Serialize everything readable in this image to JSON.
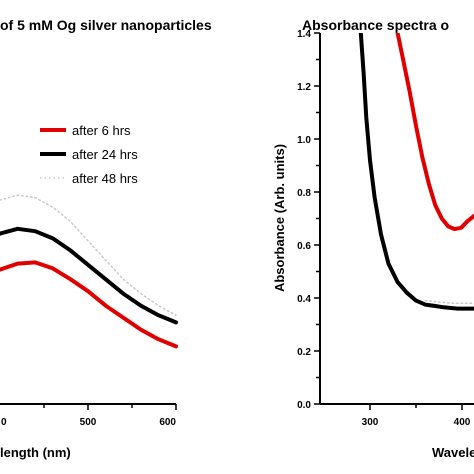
{
  "chart_data": [
    {
      "type": "line",
      "title": "of 5 mM Og silver nanoparticles",
      "xlabel": "length (nm)",
      "ylabel": "",
      "xlim": [
        300,
        600
      ],
      "ylim": [
        0.0,
        1.2
      ],
      "x_ticks": [
        "500",
        "600"
      ],
      "x_tick_partial": "0",
      "legend_position": "top-right",
      "series": [
        {
          "name": "after 6 hrs",
          "color": "#e00000",
          "style": "solid",
          "points": [
            [
              300,
              0.43
            ],
            [
              320,
              0.44
            ],
            [
              340,
              0.47
            ],
            [
              360,
              0.5
            ],
            [
              380,
              0.53
            ],
            [
              400,
              0.56
            ],
            [
              420,
              0.585
            ],
            [
              440,
              0.59
            ],
            [
              460,
              0.565
            ],
            [
              480,
              0.52
            ],
            [
              500,
              0.47
            ],
            [
              520,
              0.41
            ],
            [
              540,
              0.36
            ],
            [
              560,
              0.31
            ],
            [
              580,
              0.27
            ],
            [
              600,
              0.24
            ]
          ]
        },
        {
          "name": "after 24 hrs",
          "color": "#000000",
          "style": "solid",
          "points": [
            [
              300,
              0.52
            ],
            [
              320,
              0.55
            ],
            [
              340,
              0.59
            ],
            [
              360,
              0.63
            ],
            [
              380,
              0.68
            ],
            [
              400,
              0.71
            ],
            [
              420,
              0.73
            ],
            [
              440,
              0.72
            ],
            [
              460,
              0.69
            ],
            [
              480,
              0.64
            ],
            [
              500,
              0.58
            ],
            [
              520,
              0.52
            ],
            [
              540,
              0.46
            ],
            [
              560,
              0.41
            ],
            [
              580,
              0.37
            ],
            [
              600,
              0.34
            ]
          ]
        },
        {
          "name": "after 48 hrs",
          "color": "#c8c8c8",
          "style": "dotted",
          "points": [
            [
              300,
              0.56
            ],
            [
              320,
              0.62
            ],
            [
              340,
              0.69
            ],
            [
              360,
              0.76
            ],
            [
              380,
              0.81
            ],
            [
              400,
              0.85
            ],
            [
              420,
              0.87
            ],
            [
              440,
              0.86
            ],
            [
              460,
              0.82
            ],
            [
              480,
              0.76
            ],
            [
              500,
              0.68
            ],
            [
              520,
              0.6
            ],
            [
              540,
              0.52
            ],
            [
              560,
              0.46
            ],
            [
              580,
              0.41
            ],
            [
              600,
              0.37
            ]
          ]
        }
      ]
    },
    {
      "type": "line",
      "title": "Absorbance spectra o",
      "xlabel": "Wavele",
      "ylabel": "Absorbance (Arb. units)",
      "xlim": [
        260,
        440
      ],
      "ylim": [
        0.0,
        1.4
      ],
      "x_ticks": [
        "300",
        "400"
      ],
      "y_ticks": [
        "0.0",
        "0.2",
        "0.4",
        "0.6",
        "0.8",
        "1.0",
        "1.2",
        "1.4"
      ],
      "series": [
        {
          "name": "",
          "color": "#e00000",
          "style": "solid",
          "points": [
            [
              330,
              1.4
            ],
            [
              336,
              1.3
            ],
            [
              343,
              1.18
            ],
            [
              350,
              1.05
            ],
            [
              357,
              0.93
            ],
            [
              364,
              0.83
            ],
            [
              371,
              0.75
            ],
            [
              378,
              0.7
            ],
            [
              385,
              0.67
            ],
            [
              392,
              0.66
            ],
            [
              399,
              0.665
            ],
            [
              406,
              0.69
            ],
            [
              413,
              0.71
            ],
            [
              420,
              0.71
            ]
          ]
        },
        {
          "name": "",
          "color": "#000000",
          "style": "solid",
          "points": [
            [
              290,
              1.4
            ],
            [
              293,
              1.25
            ],
            [
              296,
              1.08
            ],
            [
              300,
              0.92
            ],
            [
              305,
              0.78
            ],
            [
              312,
              0.64
            ],
            [
              320,
              0.53
            ],
            [
              330,
              0.46
            ],
            [
              340,
              0.42
            ],
            [
              350,
              0.39
            ],
            [
              360,
              0.375
            ],
            [
              370,
              0.37
            ],
            [
              380,
              0.365
            ],
            [
              395,
              0.36
            ],
            [
              410,
              0.36
            ],
            [
              420,
              0.36
            ]
          ]
        },
        {
          "name": "",
          "color": "#c8c8c8",
          "style": "dotted",
          "points": [
            [
              360,
              0.39
            ],
            [
              375,
              0.385
            ],
            [
              390,
              0.38
            ],
            [
              405,
              0.38
            ],
            [
              420,
              0.38
            ]
          ]
        }
      ]
    }
  ]
}
